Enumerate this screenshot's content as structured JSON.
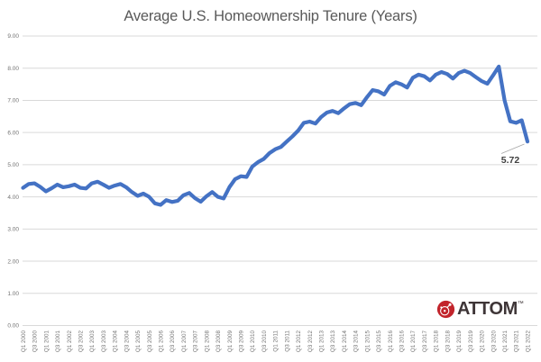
{
  "chart_data": {
    "type": "line",
    "title": "Average U.S. Homeownership Tenure (Years)",
    "xlabel": "",
    "ylabel": "",
    "ylim": [
      0,
      9
    ],
    "grid": "horizontal",
    "legend": "none",
    "x_frequency": "quarterly",
    "x_start": "Q1 2000",
    "x_end": "Q1 2022",
    "y_tick_labels": [
      "9.00",
      "8.00",
      "7.00",
      "6.00",
      "5.00",
      "4.00",
      "3.00",
      "2.00",
      "1.00",
      "0.00"
    ],
    "x_tick_labels": [
      "Q1 2000",
      "Q3 2000",
      "Q1 2001",
      "Q3 2001",
      "Q1 2002",
      "Q3 2002",
      "Q1 2003",
      "Q3 2003",
      "Q1 2004",
      "Q3 2004",
      "Q1 2005",
      "Q3 2005",
      "Q1 2006",
      "Q3 2006",
      "Q1 2007",
      "Q3 2007",
      "Q1 2008",
      "Q3 2008",
      "Q1 2009",
      "Q3 2009",
      "Q1 2010",
      "Q3 2010",
      "Q1 2011",
      "Q3 2011",
      "Q1 2012",
      "Q3 2012",
      "Q1 2013",
      "Q3 2013",
      "Q1 2014",
      "Q3 2014",
      "Q1 2015",
      "Q3 2015",
      "Q1 2016",
      "Q3 2016",
      "Q1 2017",
      "Q3 2017",
      "Q1 2018",
      "Q3 2018",
      "Q1 2019",
      "Q3 2019",
      "Q1 2020",
      "Q3 2020",
      "Q1 2021",
      "Q3 2021",
      "Q1 2022"
    ],
    "series": [
      {
        "name": "Average U.S. homeownership tenure (years), quarterly Q1 2000 - Q1 2022",
        "color": "#4472C4",
        "values": [
          4.28,
          4.4,
          4.42,
          4.31,
          4.17,
          4.27,
          4.38,
          4.3,
          4.33,
          4.38,
          4.28,
          4.26,
          4.42,
          4.47,
          4.38,
          4.28,
          4.35,
          4.4,
          4.3,
          4.15,
          4.03,
          4.1,
          4.0,
          3.8,
          3.75,
          3.9,
          3.84,
          3.88,
          4.05,
          4.12,
          3.96,
          3.85,
          4.02,
          4.15,
          4.0,
          3.95,
          4.3,
          4.55,
          4.64,
          4.62,
          4.94,
          5.08,
          5.18,
          5.36,
          5.48,
          5.55,
          5.72,
          5.88,
          6.06,
          6.3,
          6.34,
          6.28,
          6.48,
          6.62,
          6.67,
          6.6,
          6.75,
          6.88,
          6.92,
          6.85,
          7.1,
          7.32,
          7.28,
          7.18,
          7.45,
          7.56,
          7.5,
          7.4,
          7.7,
          7.8,
          7.75,
          7.62,
          7.8,
          7.88,
          7.82,
          7.68,
          7.85,
          7.92,
          7.85,
          7.72,
          7.6,
          7.52,
          7.78,
          8.05,
          7.0,
          6.35,
          6.3,
          6.38,
          5.72
        ]
      }
    ],
    "annotation": {
      "text": "5.72",
      "target": "Q1 2022"
    }
  },
  "logo": {
    "brand": "ATTOM",
    "trademark": "™",
    "icon": "attom-red-circle-icon",
    "icon_color": "#c2242b"
  },
  "colors": {
    "title": "#595959",
    "axis_labels": "#737373",
    "gridline": "#d9d9d9",
    "annotation": "#404040",
    "leader_line": "#a6a6a6",
    "logo_text": "#3e3537"
  }
}
